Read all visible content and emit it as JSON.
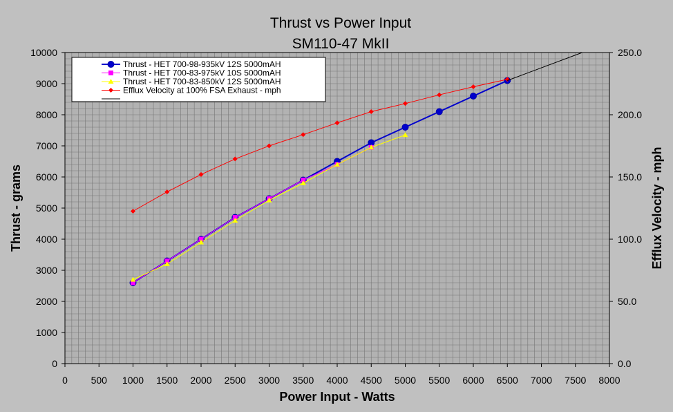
{
  "chart_data": {
    "type": "line",
    "title": "Thrust vs Power Input",
    "subtitle": "SM110-47 MkII",
    "xlabel": "Power Input - Watts",
    "ylabel": "Thrust - grams",
    "y2label": "Efflux Velocity - mph",
    "xlim": [
      0,
      8000
    ],
    "ylim": [
      0,
      10000
    ],
    "y2lim": [
      0,
      250
    ],
    "x_ticks": [
      "0",
      "500",
      "1000",
      "1500",
      "2000",
      "2500",
      "3000",
      "3500",
      "4000",
      "4500",
      "5000",
      "5500",
      "6000",
      "6500",
      "7000",
      "7500",
      "8000"
    ],
    "y_ticks": [
      "0",
      "1000",
      "2000",
      "3000",
      "4000",
      "5000",
      "6000",
      "7000",
      "8000",
      "9000",
      "10000"
    ],
    "y2_ticks": [
      "0.0",
      "50.0",
      "100.0",
      "150.0",
      "200.0",
      "250.0"
    ],
    "grid": true,
    "legend_position": "top-left",
    "series": [
      {
        "name": "Thrust - HET 700-98-935kV 12S 5000mAH",
        "axis": "left",
        "color": "#0000cc",
        "marker": "circle",
        "x": [
          1000,
          1500,
          2000,
          2500,
          3000,
          3500,
          4000,
          4500,
          5000,
          5500,
          6000,
          6500
        ],
        "y": [
          2600,
          3300,
          4000,
          4700,
          5300,
          5900,
          6500,
          7100,
          7600,
          8100,
          8600,
          9100
        ]
      },
      {
        "name": "Thrust - HET 700-83-975kV 10S 5000mAH",
        "axis": "left",
        "color": "#ff00ff",
        "marker": "square",
        "x": [
          1000,
          1500,
          2000,
          2500,
          3000,
          3500,
          4000,
          4500
        ],
        "y": [
          2600,
          3300,
          4000,
          4700,
          5300,
          5900,
          6400,
          6950
        ]
      },
      {
        "name": "Thrust - HET 700-83-850kV 12S 5000mAH",
        "axis": "left",
        "color": "#ffff00",
        "marker": "triangle",
        "x": [
          1000,
          1500,
          2000,
          2500,
          3000,
          3500,
          4000,
          4500,
          5000
        ],
        "y": [
          2700,
          3200,
          3900,
          4600,
          5250,
          5800,
          6400,
          6950,
          7350
        ]
      },
      {
        "name": "Efflux Velocity at 100% FSA Exhaust - mph",
        "axis": "right",
        "color": "#ff0000",
        "marker": "diamond",
        "x": [
          1000,
          1500,
          2000,
          2500,
          3000,
          3500,
          4000,
          4500,
          5000,
          5500,
          6000,
          6500
        ],
        "y": [
          122.5,
          138,
          152,
          164.5,
          175,
          184,
          193.5,
          202.5,
          209,
          216,
          222.5,
          228.5
        ]
      },
      {
        "name": "",
        "axis": "left",
        "color": "#000000",
        "marker": "none",
        "x": [
          6500,
          7600
        ],
        "y": [
          9100,
          10000
        ]
      }
    ]
  }
}
